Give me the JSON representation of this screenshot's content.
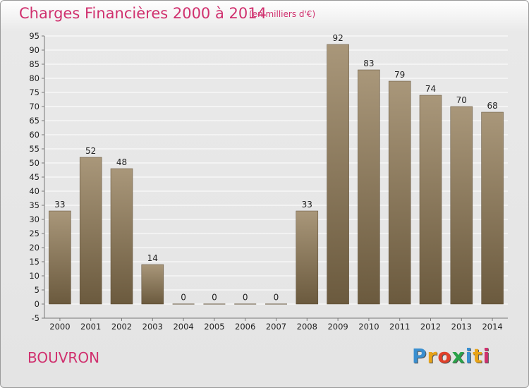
{
  "title": "Charges Financières 2000 à 2014",
  "subtitle": "(en milliers d'€)",
  "commune": "BOUVRON",
  "logo": {
    "text": "Proxiti",
    "letter_colors": [
      "#3a8fd0",
      "#e8a317",
      "#e0402a",
      "#2aa34a",
      "#3a8fd0",
      "#e8a317",
      "#d0306e"
    ]
  },
  "colors": {
    "title": "#d0306e",
    "bar_top": "#a9977a",
    "bar_bottom": "#6b5a3e",
    "grid": "#ffffff",
    "axis": "#777777"
  },
  "chart_data": {
    "type": "bar",
    "title": "Charges Financières 2000 à 2014",
    "subtitle": "(en milliers d'€)",
    "categories": [
      "2000",
      "2001",
      "2002",
      "2003",
      "2004",
      "2005",
      "2006",
      "2007",
      "2008",
      "2009",
      "2010",
      "2011",
      "2012",
      "2013",
      "2014"
    ],
    "values": [
      33,
      52,
      48,
      14,
      0,
      0,
      0,
      0,
      33,
      92,
      83,
      79,
      74,
      70,
      68
    ],
    "ylim": [
      -5,
      95
    ],
    "yticks": [
      -5,
      0,
      5,
      10,
      15,
      20,
      25,
      30,
      35,
      40,
      45,
      50,
      55,
      60,
      65,
      70,
      75,
      80,
      85,
      90,
      95
    ],
    "grid": true,
    "legend": "none"
  }
}
